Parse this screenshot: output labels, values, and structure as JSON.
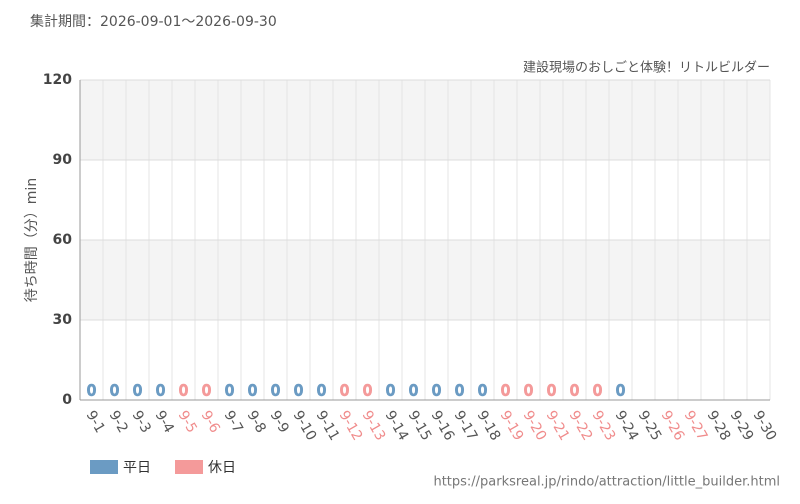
{
  "chart_data": {
    "type": "bar",
    "subtitle": "集計期間：2026-09-01〜2026-09-30",
    "title": "建設現場のおしごと体験！リトルビルダー",
    "ylabel": "待ち時間（分）min",
    "source": "https://parksreal.jp/rindo/attraction/little_builder.html",
    "categories": [
      "9-1",
      "9-2",
      "9-3",
      "9-4",
      "9-5",
      "9-6",
      "9-7",
      "9-8",
      "9-9",
      "9-10",
      "9-11",
      "9-12",
      "9-13",
      "9-14",
      "9-15",
      "9-16",
      "9-17",
      "9-18",
      "9-19",
      "9-20",
      "9-21",
      "9-22",
      "9-23",
      "9-24",
      "9-25",
      "9-26",
      "9-27",
      "9-28",
      "9-29",
      "9-30"
    ],
    "category_colors": [
      "#555",
      "#555",
      "#555",
      "#555",
      "#f08c8c",
      "#f08c8c",
      "#555",
      "#555",
      "#555",
      "#555",
      "#555",
      "#f08c8c",
      "#f08c8c",
      "#555",
      "#555",
      "#555",
      "#555",
      "#555",
      "#f08c8c",
      "#f08c8c",
      "#f08c8c",
      "#f08c8c",
      "#f08c8c",
      "#555",
      "#555",
      "#f08c8c",
      "#f08c8c",
      "#555",
      "#555",
      "#555"
    ],
    "series": [
      {
        "name": "平日",
        "color": "#6b9bc3",
        "values": [
          0,
          0,
          0,
          0,
          null,
          null,
          0,
          0,
          0,
          0,
          0,
          null,
          null,
          0,
          0,
          0,
          0,
          0,
          null,
          null,
          null,
          null,
          null,
          0,
          null,
          null,
          null,
          null,
          null,
          null
        ]
      },
      {
        "name": "休日",
        "color": "#f49a9a",
        "values": [
          null,
          null,
          null,
          null,
          0,
          0,
          null,
          null,
          null,
          null,
          null,
          0,
          0,
          null,
          null,
          null,
          null,
          null,
          0,
          0,
          0,
          0,
          0,
          null,
          null,
          null,
          null,
          null,
          null,
          null
        ]
      }
    ],
    "ylim": [
      0,
      120
    ],
    "yticks": [
      0,
      30,
      60,
      90,
      120
    ],
    "grid": true,
    "legend": "bottom-left"
  }
}
